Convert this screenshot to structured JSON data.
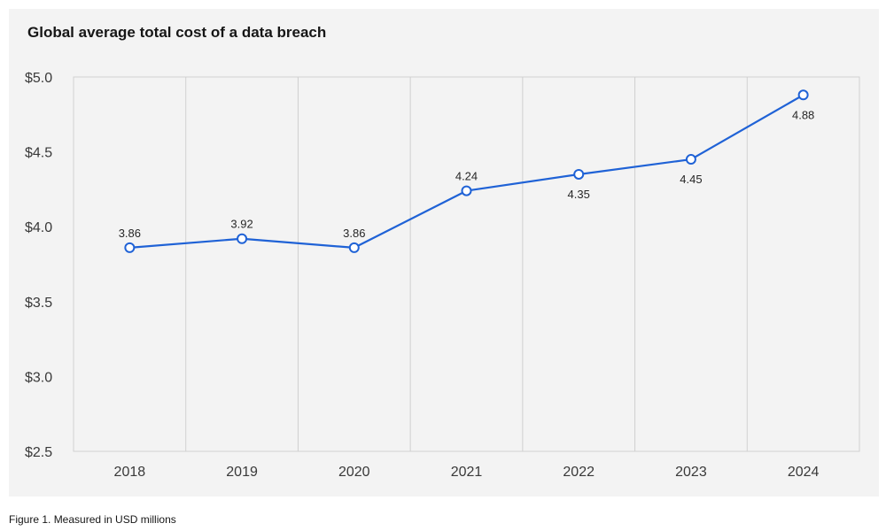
{
  "chart_data": {
    "type": "line",
    "title": "Global average total cost of a data breach",
    "caption": "Figure 1. Measured in USD millions",
    "categories": [
      "2018",
      "2019",
      "2020",
      "2021",
      "2022",
      "2023",
      "2024"
    ],
    "series": [
      {
        "values": [
          3.86,
          3.92,
          3.86,
          4.24,
          4.35,
          4.45,
          4.88
        ],
        "labels": [
          "3.86",
          "3.92",
          "3.86",
          "4.24",
          "4.35",
          "4.45",
          "4.88"
        ],
        "label_position": [
          "above",
          "above",
          "above",
          "above",
          "below",
          "below",
          "below"
        ],
        "color": "#1f62d6"
      }
    ],
    "yticks": [
      "$5.0",
      "$4.5",
      "$4.0",
      "$3.5",
      "$3.0",
      "$2.5"
    ],
    "ytick_values": [
      5.0,
      4.5,
      4.0,
      3.5,
      3.0,
      2.5
    ],
    "ylim": [
      2.5,
      5.0
    ],
    "xlabel": "",
    "ylabel": "",
    "grid": "vertical",
    "legend": "none"
  }
}
